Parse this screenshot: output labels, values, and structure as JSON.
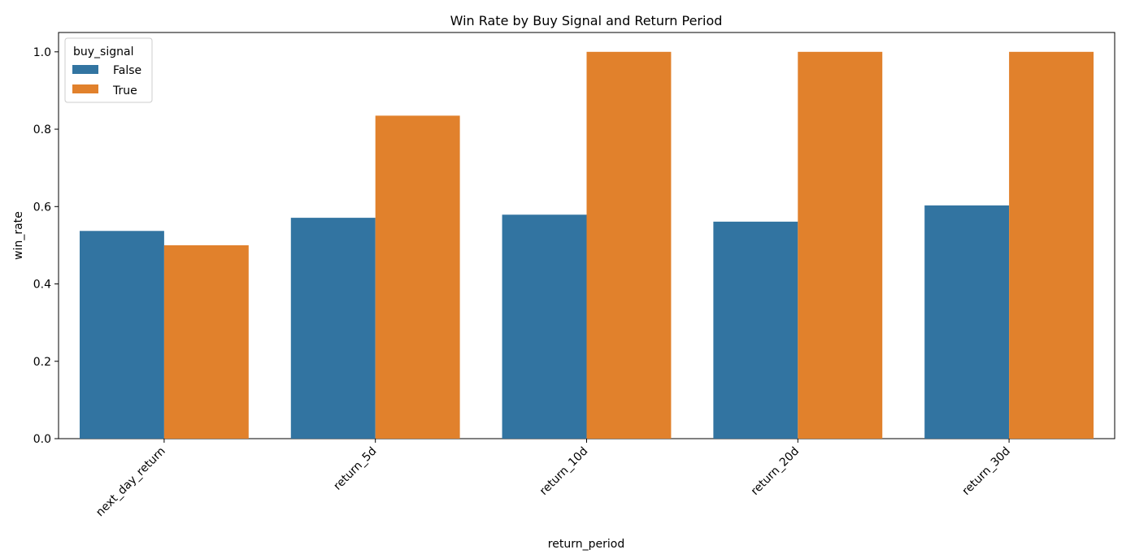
{
  "chart_data": {
    "type": "bar",
    "title": "Win Rate by Buy Signal and Return Period",
    "xlabel": "return_period",
    "ylabel": "win_rate",
    "categories": [
      "next_day_return",
      "return_5d",
      "return_10d",
      "return_20d",
      "return_30d"
    ],
    "series": [
      {
        "name": "False",
        "color": "#3274a1",
        "values": [
          0.537,
          0.571,
          0.579,
          0.561,
          0.603
        ]
      },
      {
        "name": "True",
        "color": "#e1812c",
        "values": [
          0.5,
          0.835,
          1.0,
          1.0,
          1.0
        ]
      }
    ],
    "ylim": [
      0,
      1.05
    ],
    "yticks": [
      0.0,
      0.2,
      0.4,
      0.6,
      0.8,
      1.0
    ],
    "ytick_labels": [
      "0.0",
      "0.2",
      "0.4",
      "0.6",
      "0.8",
      "1.0"
    ],
    "grid": false,
    "legend": {
      "title": "buy_signal",
      "placement": "top-left",
      "entries": [
        "False",
        "True"
      ]
    }
  }
}
